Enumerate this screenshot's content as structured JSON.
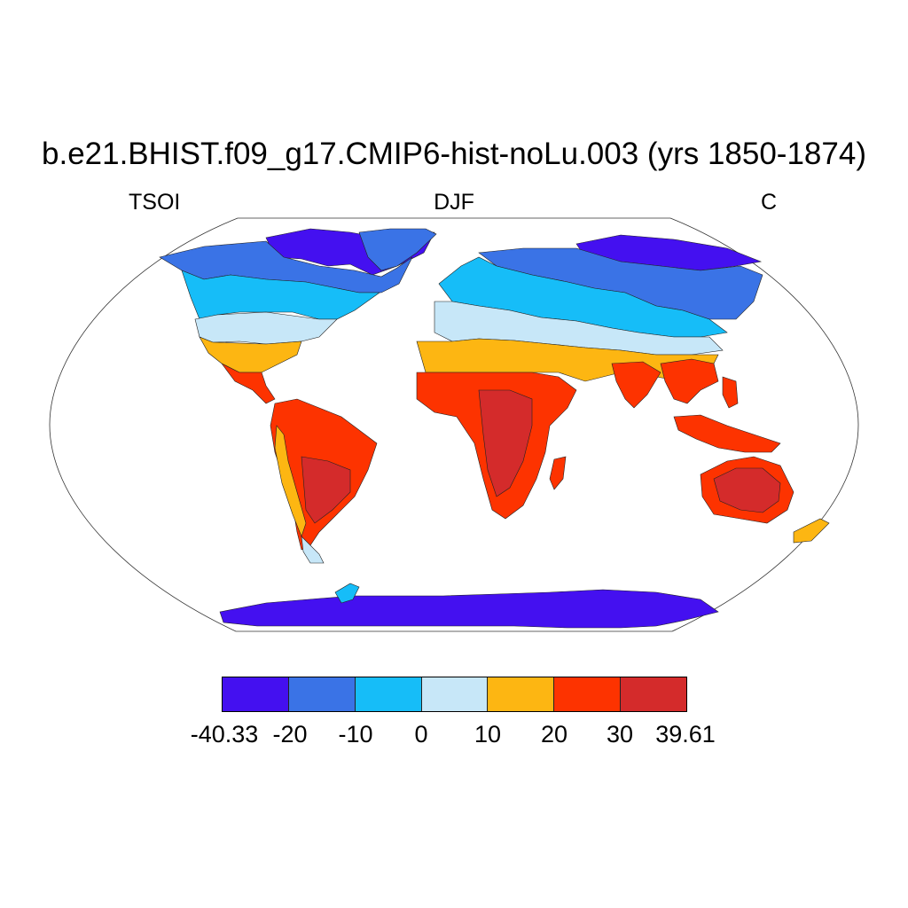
{
  "title": "b.e21.BHIST.f09_g17.CMIP6-hist-noLu.003 (yrs 1850-1874)",
  "subtitle_left": "TSOI",
  "subtitle_center": "DJF",
  "subtitle_right": "C",
  "map": {
    "projection": "Robinson",
    "variable": "TSOI",
    "season": "DJF",
    "units": "C"
  },
  "colorbar": {
    "colors": [
      "#4410f0",
      "#3a73e6",
      "#16bdf8",
      "#c7e7f8",
      "#fdb612",
      "#fd3300",
      "#d42b2b"
    ],
    "labels": [
      "-40.33",
      "-20",
      "-10",
      "0",
      "10",
      "20",
      "30",
      "39.61"
    ]
  }
}
